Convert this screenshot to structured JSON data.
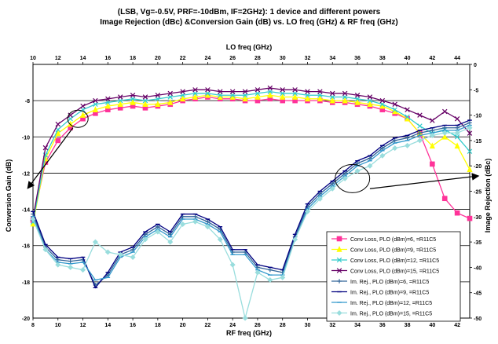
{
  "chart_data": {
    "type": "line",
    "title_line1": "(LSB, Vg=-0.5V, PRF=-10dBm, IF=2GHz): 1 device and different powers",
    "title_line2": "Image Rejection (dBc) &Conversion Gain (dB)  vs. LO freq (GHz) & RF freq (GHz)",
    "top_xlabel": "LO freq (GHz)",
    "xlabel": "RF freq (GHz)",
    "ylabel_left": "Conversion Gain (dB)",
    "ylabel_right": "Image Rejection (dBc)",
    "x_range": [
      8,
      43
    ],
    "top_x_range": [
      10,
      45
    ],
    "y_left_range": [
      -20,
      -6
    ],
    "y_right_range": [
      -50,
      0
    ],
    "x_ticks": [
      "8",
      "10",
      "12",
      "14",
      "16",
      "18",
      "20",
      "22",
      "24",
      "26",
      "28",
      "30",
      "32",
      "34",
      "36",
      "38",
      "40",
      "42"
    ],
    "top_x_ticks": [
      "10",
      "12",
      "14",
      "16",
      "18",
      "20",
      "22",
      "24",
      "26",
      "28",
      "30",
      "32",
      "34",
      "36",
      "38",
      "40",
      "42",
      "44"
    ],
    "y_left_ticks": [
      "-8",
      "-10",
      "-12",
      "-14",
      "-16",
      "-18",
      "-20"
    ],
    "y_right_ticks": [
      "0",
      "-5",
      "-10",
      "-15",
      "-20",
      "-25",
      "-30",
      "-35",
      "-40",
      "-45",
      "-50"
    ],
    "grid": true,
    "legend_position": "bottom-right",
    "series": [
      {
        "name": "Conv Loss, PLO (dBm)=6, =R11C5",
        "axis": "left",
        "color": "#ff3399",
        "marker": "square",
        "x": [
          8,
          9,
          10,
          11,
          12,
          13,
          14,
          15,
          16,
          17,
          18,
          19,
          20,
          21,
          22,
          23,
          24,
          25,
          26,
          27,
          28,
          29,
          30,
          31,
          32,
          33,
          34,
          35,
          36,
          37,
          38,
          39,
          40,
          41,
          42,
          43
        ],
        "y": [
          -14.6,
          -11.4,
          -10.2,
          -9.5,
          -9.0,
          -8.7,
          -8.5,
          -8.4,
          -8.3,
          -8.4,
          -8.3,
          -8.2,
          -8.0,
          -7.9,
          -7.8,
          -7.9,
          -7.9,
          -8.0,
          -8.0,
          -7.9,
          -8.0,
          -8.0,
          -8.0,
          -8.0,
          -8.1,
          -8.1,
          -8.2,
          -8.3,
          -8.5,
          -8.7,
          -9.0,
          -9.8,
          -11.5,
          -13.4,
          -14.2,
          -14.5
        ]
      },
      {
        "name": "Conv Loss, PLO (dBm)=9, =R11C5",
        "axis": "left",
        "color": "#ffff00",
        "marker": "triangle",
        "x": [
          8,
          9,
          10,
          11,
          12,
          13,
          14,
          15,
          16,
          17,
          18,
          19,
          20,
          21,
          22,
          23,
          24,
          25,
          26,
          27,
          28,
          29,
          30,
          31,
          32,
          33,
          34,
          35,
          36,
          37,
          38,
          39,
          40,
          41,
          42,
          43
        ],
        "y": [
          -14.8,
          -11.2,
          -9.8,
          -9.3,
          -8.8,
          -8.5,
          -8.3,
          -8.2,
          -8.1,
          -8.2,
          -8.2,
          -8.1,
          -7.9,
          -7.8,
          -7.7,
          -7.8,
          -7.8,
          -7.9,
          -7.8,
          -7.7,
          -7.8,
          -7.8,
          -7.9,
          -7.9,
          -8.0,
          -8.0,
          -8.1,
          -8.2,
          -8.3,
          -8.6,
          -9.0,
          -9.8,
          -10.5,
          -10.0,
          -10.5,
          -11.8
        ]
      },
      {
        "name": "Conv Loss, PLO (dBm)=12, =R11C5",
        "axis": "left",
        "color": "#33cccc",
        "marker": "x",
        "x": [
          8,
          9,
          10,
          11,
          12,
          13,
          14,
          15,
          16,
          17,
          18,
          19,
          20,
          21,
          22,
          23,
          24,
          25,
          26,
          27,
          28,
          29,
          30,
          31,
          32,
          33,
          34,
          35,
          36,
          37,
          38,
          39,
          40,
          41,
          42,
          43
        ],
        "y": [
          -14.7,
          -11.0,
          -9.6,
          -9.0,
          -8.5,
          -8.2,
          -8.1,
          -8.0,
          -7.9,
          -8.0,
          -7.9,
          -7.8,
          -7.7,
          -7.6,
          -7.6,
          -7.7,
          -7.7,
          -7.7,
          -7.6,
          -7.5,
          -7.6,
          -7.6,
          -7.7,
          -7.7,
          -7.8,
          -7.8,
          -7.9,
          -8.0,
          -8.2,
          -8.5,
          -8.9,
          -9.4,
          -9.8,
          -9.6,
          -10.0,
          -10.8
        ]
      },
      {
        "name": "Conv Loss, PLO (dBm)=15, =R11C5",
        "axis": "left",
        "color": "#660066",
        "marker": "x",
        "x": [
          8,
          9,
          10,
          11,
          12,
          13,
          14,
          15,
          16,
          17,
          18,
          19,
          20,
          21,
          22,
          23,
          24,
          25,
          26,
          27,
          28,
          29,
          30,
          31,
          32,
          33,
          34,
          35,
          36,
          37,
          38,
          39,
          40,
          41,
          42,
          43
        ],
        "y": [
          -14.5,
          -10.6,
          -9.3,
          -8.8,
          -8.3,
          -8.0,
          -7.9,
          -7.8,
          -7.7,
          -7.8,
          -7.7,
          -7.6,
          -7.5,
          -7.4,
          -7.4,
          -7.5,
          -7.5,
          -7.5,
          -7.4,
          -7.3,
          -7.4,
          -7.4,
          -7.5,
          -7.5,
          -7.6,
          -7.6,
          -7.7,
          -7.8,
          -8.0,
          -8.2,
          -8.5,
          -8.8,
          -9.1,
          -8.6,
          -9.0,
          -9.8
        ]
      },
      {
        "name": "Im. Rej., PLO (dBm)=6, =R11C5",
        "axis": "right",
        "color": "#336699",
        "marker": "plus",
        "x": [
          8,
          9,
          10,
          11,
          12,
          13,
          14,
          15,
          16,
          17,
          18,
          19,
          20,
          21,
          22,
          23,
          24,
          25,
          26,
          27,
          28,
          29,
          30,
          31,
          32,
          33,
          34,
          35,
          36,
          37,
          38,
          39,
          40,
          41,
          42,
          43
        ],
        "y": [
          -29.5,
          -36.0,
          -38.5,
          -38.8,
          -38.5,
          -43.5,
          -41.5,
          -37.5,
          -36.5,
          -33.5,
          -32.0,
          -33.5,
          -30.0,
          -30.0,
          -31.0,
          -32.5,
          -37.0,
          -37.0,
          -40.0,
          -40.5,
          -41.0,
          -34.0,
          -28.0,
          -25.5,
          -23.5,
          -21.5,
          -19.5,
          -18.5,
          -16.5,
          -15.0,
          -14.5,
          -13.5,
          -13.0,
          -12.5,
          -12.5,
          -11.5
        ]
      },
      {
        "name": "Im. Rej., PLO (dBm)=9, =R11C5",
        "axis": "right",
        "color": "#000080",
        "marker": "dash",
        "x": [
          8,
          9,
          10,
          11,
          12,
          13,
          14,
          15,
          16,
          17,
          18,
          19,
          20,
          21,
          22,
          23,
          24,
          25,
          26,
          27,
          28,
          29,
          30,
          31,
          32,
          33,
          34,
          35,
          36,
          37,
          38,
          39,
          40,
          41,
          42,
          43
        ],
        "y": [
          -29.0,
          -35.5,
          -38.0,
          -38.3,
          -38.0,
          -44.0,
          -41.0,
          -37.0,
          -36.0,
          -33.0,
          -31.5,
          -33.0,
          -29.5,
          -29.5,
          -30.5,
          -32.0,
          -36.5,
          -36.5,
          -39.5,
          -40.0,
          -40.5,
          -33.5,
          -27.5,
          -25.0,
          -23.0,
          -21.0,
          -19.0,
          -18.0,
          -16.0,
          -14.5,
          -14.0,
          -13.0,
          -12.5,
          -12.0,
          -12.0,
          -11.0
        ]
      },
      {
        "name": "Im. Rej., PLO (dBm)=12, =R11C5",
        "axis": "right",
        "color": "#3399cc",
        "marker": "dash",
        "x": [
          8,
          9,
          10,
          11,
          12,
          13,
          14,
          15,
          16,
          17,
          18,
          19,
          20,
          21,
          22,
          23,
          24,
          25,
          26,
          27,
          28,
          29,
          30,
          31,
          32,
          33,
          34,
          35,
          36,
          37,
          38,
          39,
          40,
          41,
          42,
          43
        ],
        "y": [
          -30.0,
          -36.5,
          -39.0,
          -39.3,
          -39.0,
          -42.5,
          -42.0,
          -38.0,
          -37.0,
          -34.0,
          -32.5,
          -34.0,
          -30.5,
          -30.5,
          -31.5,
          -33.0,
          -37.5,
          -37.5,
          -40.5,
          -41.5,
          -41.5,
          -34.5,
          -28.5,
          -26.0,
          -24.0,
          -22.0,
          -20.0,
          -19.0,
          -17.0,
          -15.5,
          -15.0,
          -14.0,
          -13.5,
          -13.0,
          -13.0,
          -12.0
        ]
      },
      {
        "name": "Im. Rej., PLO (dBm)=15, =R11C5",
        "axis": "right",
        "color": "#99dddd",
        "marker": "diamond",
        "x": [
          8,
          9,
          10,
          11,
          12,
          13,
          14,
          15,
          16,
          17,
          18,
          19,
          20,
          21,
          22,
          23,
          24,
          25,
          26,
          27,
          28,
          29,
          30,
          31,
          32,
          33,
          34,
          35,
          36,
          37,
          38,
          39,
          40,
          41,
          42,
          43
        ],
        "y": [
          -30.5,
          -36.5,
          -39.5,
          -40.0,
          -40.5,
          -35.0,
          -37.0,
          -37.5,
          -38.0,
          -34.5,
          -33.0,
          -35.0,
          -31.5,
          -31.0,
          -32.0,
          -34.5,
          -39.5,
          -50.0,
          -41.0,
          -42.5,
          -42.0,
          -34.5,
          -29.0,
          -26.5,
          -24.5,
          -22.5,
          -21.0,
          -20.0,
          -18.0,
          -16.5,
          -16.0,
          -15.0,
          -14.0,
          -13.5,
          -13.5,
          -12.5
        ]
      }
    ]
  }
}
